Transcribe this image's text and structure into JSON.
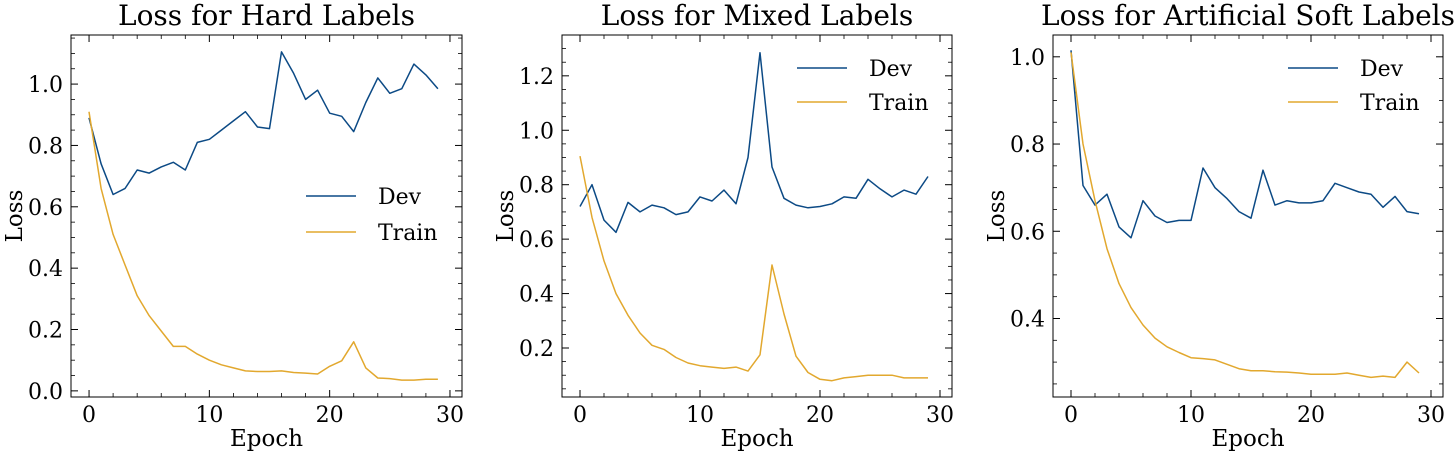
{
  "colors": {
    "dev": "#0c4a85",
    "train": "#e2a82e"
  },
  "chart_data": [
    {
      "type": "line",
      "title": "Loss for Hard Labels",
      "xlabel": "Epoch",
      "ylabel": "Loss",
      "xlim": [
        -1.5,
        31
      ],
      "ylim": [
        -0.02,
        1.16
      ],
      "xticks": [
        0,
        10,
        20,
        30
      ],
      "xtick_labels": [
        "0",
        "10",
        "20",
        "30"
      ],
      "yticks": [
        0.0,
        0.2,
        0.4,
        0.6,
        0.8,
        1.0
      ],
      "ytick_labels": [
        "0.0",
        "0.2",
        "0.4",
        "0.6",
        "0.8",
        "1.0"
      ],
      "legend_position": "center-right",
      "x": [
        0,
        1,
        2,
        3,
        4,
        5,
        6,
        7,
        8,
        9,
        10,
        11,
        12,
        13,
        14,
        15,
        16,
        17,
        18,
        19,
        20,
        21,
        22,
        23,
        24,
        25,
        26,
        27,
        28,
        29
      ],
      "series": [
        {
          "name": "Dev",
          "values": [
            0.89,
            0.74,
            0.64,
            0.66,
            0.72,
            0.71,
            0.73,
            0.745,
            0.72,
            0.81,
            0.82,
            0.85,
            0.88,
            0.91,
            0.86,
            0.855,
            1.105,
            1.035,
            0.95,
            0.98,
            0.905,
            0.895,
            0.845,
            0.94,
            1.02,
            0.97,
            0.985,
            1.065,
            1.03,
            0.985
          ]
        },
        {
          "name": "Train",
          "values": [
            0.91,
            0.66,
            0.51,
            0.41,
            0.31,
            0.245,
            0.195,
            0.145,
            0.145,
            0.12,
            0.1,
            0.085,
            0.075,
            0.065,
            0.063,
            0.063,
            0.065,
            0.06,
            0.058,
            0.055,
            0.08,
            0.098,
            0.16,
            0.075,
            0.042,
            0.04,
            0.035,
            0.035,
            0.038,
            0.038
          ]
        }
      ]
    },
    {
      "type": "line",
      "title": "Loss for Mixed Labels",
      "xlabel": "Epoch",
      "ylabel": "Loss",
      "xlim": [
        -1.5,
        31
      ],
      "ylim": [
        0.02,
        1.35
      ],
      "xticks": [
        0,
        10,
        20,
        30
      ],
      "xtick_labels": [
        "0",
        "10",
        "20",
        "30"
      ],
      "yticks": [
        0.2,
        0.4,
        0.6,
        0.8,
        1.0,
        1.2
      ],
      "ytick_labels": [
        "0.2",
        "0.4",
        "0.6",
        "0.8",
        "1.0",
        "1.2"
      ],
      "legend_position": "top-right",
      "x": [
        0,
        1,
        2,
        3,
        4,
        5,
        6,
        7,
        8,
        9,
        10,
        11,
        12,
        13,
        14,
        15,
        16,
        17,
        18,
        19,
        20,
        21,
        22,
        23,
        24,
        25,
        26,
        27,
        28,
        29
      ],
      "series": [
        {
          "name": "Dev",
          "values": [
            0.72,
            0.8,
            0.67,
            0.625,
            0.735,
            0.7,
            0.725,
            0.715,
            0.69,
            0.7,
            0.755,
            0.74,
            0.78,
            0.73,
            0.9,
            1.285,
            0.865,
            0.75,
            0.725,
            0.715,
            0.72,
            0.73,
            0.755,
            0.75,
            0.82,
            0.785,
            0.755,
            0.78,
            0.765,
            0.83
          ]
        },
        {
          "name": "Train",
          "values": [
            0.905,
            0.68,
            0.52,
            0.4,
            0.32,
            0.255,
            0.21,
            0.195,
            0.165,
            0.145,
            0.135,
            0.13,
            0.125,
            0.13,
            0.115,
            0.175,
            0.505,
            0.325,
            0.17,
            0.11,
            0.085,
            0.08,
            0.09,
            0.095,
            0.1,
            0.1,
            0.1,
            0.09,
            0.09,
            0.09
          ]
        }
      ]
    },
    {
      "type": "line",
      "title": "Loss for Artificial Soft Labels",
      "xlabel": "Epoch",
      "ylabel": "Loss",
      "xlim": [
        -1.5,
        31
      ],
      "ylim": [
        0.22,
        1.05
      ],
      "xticks": [
        0,
        10,
        20,
        30
      ],
      "xtick_labels": [
        "0",
        "10",
        "20",
        "30"
      ],
      "yticks": [
        0.4,
        0.6,
        0.8,
        1.0
      ],
      "ytick_labels": [
        "0.4",
        "0.6",
        "0.8",
        "1.0"
      ],
      "legend_position": "top-right",
      "x": [
        0,
        1,
        2,
        3,
        4,
        5,
        6,
        7,
        8,
        9,
        10,
        11,
        12,
        13,
        14,
        15,
        16,
        17,
        18,
        19,
        20,
        21,
        22,
        23,
        24,
        25,
        26,
        27,
        28,
        29
      ],
      "series": [
        {
          "name": "Dev",
          "values": [
            1.015,
            0.705,
            0.66,
            0.685,
            0.61,
            0.585,
            0.67,
            0.635,
            0.62,
            0.625,
            0.625,
            0.745,
            0.7,
            0.675,
            0.645,
            0.63,
            0.74,
            0.66,
            0.67,
            0.665,
            0.665,
            0.67,
            0.71,
            0.7,
            0.69,
            0.685,
            0.655,
            0.68,
            0.645,
            0.64
          ]
        },
        {
          "name": "Train",
          "values": [
            1.01,
            0.8,
            0.67,
            0.56,
            0.48,
            0.425,
            0.385,
            0.355,
            0.335,
            0.322,
            0.31,
            0.308,
            0.305,
            0.295,
            0.285,
            0.28,
            0.28,
            0.278,
            0.277,
            0.275,
            0.272,
            0.272,
            0.272,
            0.275,
            0.27,
            0.265,
            0.268,
            0.265,
            0.3,
            0.275
          ]
        }
      ]
    }
  ]
}
